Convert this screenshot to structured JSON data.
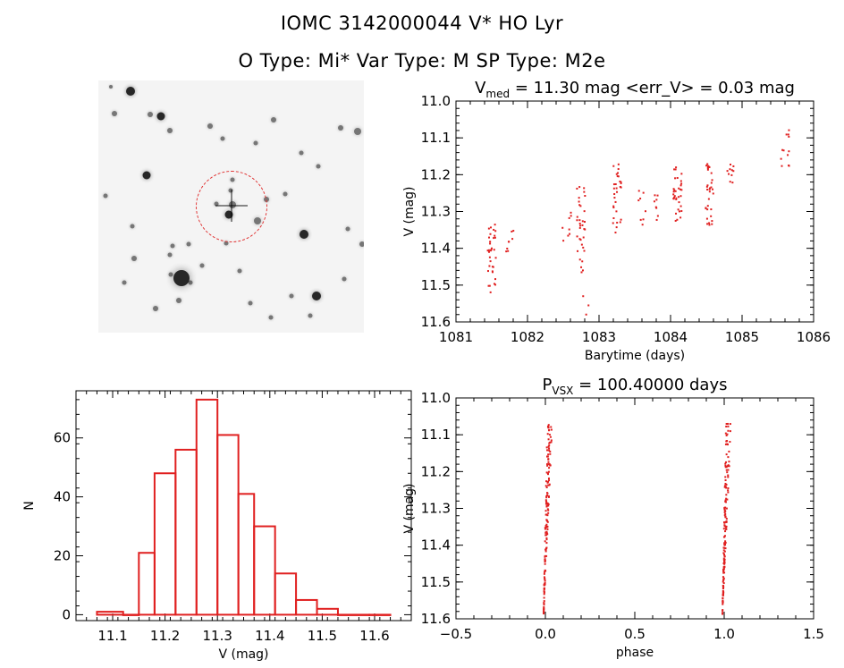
{
  "header": {
    "line1": "IOMC 3142000044    V* HO Lyr",
    "line2": "O Type: Mi*   Var Type: M   SP Type: M2e"
  },
  "colors": {
    "data": "#e02020",
    "axes": "#000000"
  },
  "chart_data": [
    {
      "id": "lightcurve",
      "type": "scatter",
      "title": "V_med = 11.30 mag <err_V> = 0.03 mag",
      "title_parts": {
        "pre": "V",
        "sub": "med",
        "post": " = 11.30 mag <err_V> = 0.03 mag"
      },
      "xlabel": "Barytime (days)",
      "ylabel": "V (mag)",
      "xlim": [
        1081,
        1086
      ],
      "ylim": [
        11.6,
        11.0
      ],
      "y_inverted": true,
      "xticks": [
        1081,
        1082,
        1083,
        1084,
        1085,
        1086
      ],
      "yticks": [
        11.0,
        11.1,
        11.2,
        11.3,
        11.4,
        11.5,
        11.6
      ],
      "clusters": [
        {
          "x": 1081.5,
          "y_top": 11.33,
          "y_bottom": 11.52,
          "n": 34
        },
        {
          "x": 1081.75,
          "y_top": 11.35,
          "y_bottom": 11.41,
          "n": 8
        },
        {
          "x": 1082.55,
          "y_top": 11.3,
          "y_bottom": 11.4,
          "n": 8
        },
        {
          "x": 1082.75,
          "y_top": 11.23,
          "y_bottom": 11.47,
          "n": 34
        },
        {
          "x": 1082.8,
          "y_top": 11.53,
          "y_bottom": 11.59,
          "n": 3
        },
        {
          "x": 1083.25,
          "y_top": 11.17,
          "y_bottom": 11.36,
          "n": 30
        },
        {
          "x": 1083.6,
          "y_top": 11.24,
          "y_bottom": 11.35,
          "n": 8
        },
        {
          "x": 1083.8,
          "y_top": 11.25,
          "y_bottom": 11.33,
          "n": 8
        },
        {
          "x": 1084.1,
          "y_top": 11.18,
          "y_bottom": 11.33,
          "n": 34
        },
        {
          "x": 1084.55,
          "y_top": 11.17,
          "y_bottom": 11.34,
          "n": 34
        },
        {
          "x": 1084.85,
          "y_top": 11.17,
          "y_bottom": 11.23,
          "n": 10
        },
        {
          "x": 1085.6,
          "y_top": 11.07,
          "y_bottom": 11.18,
          "n": 12
        }
      ]
    },
    {
      "id": "histogram",
      "type": "bar",
      "title": "",
      "xlabel": "V (mag)",
      "ylabel": "N",
      "xlim": [
        11.03,
        11.67
      ],
      "ylim": [
        -2,
        76
      ],
      "xticks": [
        11.1,
        11.2,
        11.3,
        11.4,
        11.5,
        11.6
      ],
      "yticks": [
        0,
        20,
        40,
        60
      ],
      "bins": [
        {
          "x0": 11.07,
          "x1": 11.12,
          "count": 1
        },
        {
          "x0": 11.12,
          "x1": 11.15,
          "count": 0
        },
        {
          "x0": 11.15,
          "x1": 11.18,
          "count": 21
        },
        {
          "x0": 11.18,
          "x1": 11.22,
          "count": 48
        },
        {
          "x0": 11.22,
          "x1": 11.26,
          "count": 56
        },
        {
          "x0": 11.26,
          "x1": 11.3,
          "count": 73
        },
        {
          "x0": 11.3,
          "x1": 11.34,
          "count": 61
        },
        {
          "x0": 11.34,
          "x1": 11.37,
          "count": 41
        },
        {
          "x0": 11.37,
          "x1": 11.41,
          "count": 30
        },
        {
          "x0": 11.41,
          "x1": 11.45,
          "count": 14
        },
        {
          "x0": 11.45,
          "x1": 11.49,
          "count": 5
        },
        {
          "x0": 11.49,
          "x1": 11.53,
          "count": 2
        },
        {
          "x0": 11.53,
          "x1": 11.59,
          "count": 0
        },
        {
          "x0": 11.59,
          "x1": 11.63,
          "count": 0
        }
      ]
    },
    {
      "id": "phase",
      "type": "scatter",
      "title": "P_VSX = 100.40000 days",
      "title_parts": {
        "pre": "P",
        "sub": "VSX",
        "post": " = 100.40000 days"
      },
      "xlabel": "phase",
      "ylabel": "V (mag)",
      "xlim": [
        -0.5,
        1.5
      ],
      "ylim": [
        11.6,
        11.0
      ],
      "y_inverted": true,
      "xticks": [
        -0.5,
        0.0,
        0.5,
        1.0,
        1.5
      ],
      "xticklabels": [
        "−0.5",
        "0.0",
        "0.5",
        "1.0",
        "1.5"
      ],
      "yticks": [
        11.0,
        11.1,
        11.2,
        11.3,
        11.4,
        11.5,
        11.6
      ],
      "clusters": [
        {
          "x_left": -0.01,
          "x_right": 0.04,
          "y_top": 11.07,
          "y_bottom": 11.59,
          "n": 160
        },
        {
          "x_left": 0.99,
          "x_right": 1.04,
          "y_top": 11.07,
          "y_bottom": 11.59,
          "n": 160
        }
      ]
    }
  ]
}
